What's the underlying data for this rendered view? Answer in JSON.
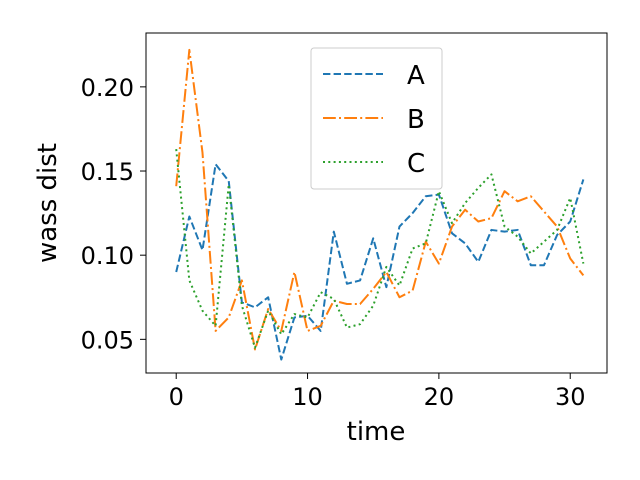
{
  "chart_data": {
    "type": "line",
    "title": "",
    "xlabel": "time",
    "ylabel": "wass dist",
    "xlim": [
      -2.3,
      32.8
    ],
    "ylim": [
      0.03,
      0.232
    ],
    "xticks": [
      0,
      10,
      20,
      30
    ],
    "yticks": [
      0.05,
      0.1,
      0.15,
      0.2
    ],
    "xtick_labels": [
      "0",
      "10",
      "20",
      "30"
    ],
    "ytick_labels": [
      "0.05",
      "0.10",
      "0.15",
      "0.20"
    ],
    "grid": false,
    "legend": "top-center",
    "x": [
      0,
      1,
      2,
      3,
      4,
      5,
      6,
      7,
      8,
      9,
      10,
      11,
      12,
      13,
      14,
      15,
      16,
      17,
      18,
      19,
      20,
      21,
      22,
      23,
      24,
      25,
      26,
      27,
      28,
      29,
      30,
      31
    ],
    "series": [
      {
        "name": "A",
        "color": "#1f77b4",
        "dash": "dashed",
        "values": [
          0.09,
          0.123,
          0.103,
          0.154,
          0.144,
          0.072,
          0.069,
          0.075,
          0.038,
          0.063,
          0.064,
          0.055,
          0.114,
          0.083,
          0.085,
          0.11,
          0.081,
          0.117,
          0.125,
          0.135,
          0.136,
          0.113,
          0.107,
          0.096,
          0.115,
          0.114,
          0.115,
          0.094,
          0.094,
          0.112,
          0.12,
          0.145
        ]
      },
      {
        "name": "B",
        "color": "#ff7f0e",
        "dash": "dashdot",
        "values": [
          0.141,
          0.222,
          0.161,
          0.055,
          0.063,
          0.085,
          0.044,
          0.068,
          0.055,
          0.09,
          0.055,
          0.058,
          0.073,
          0.071,
          0.071,
          0.08,
          0.09,
          0.075,
          0.079,
          0.108,
          0.095,
          0.117,
          0.127,
          0.12,
          0.122,
          0.138,
          0.132,
          0.135,
          0.126,
          0.117,
          0.098,
          0.088
        ]
      },
      {
        "name": "C",
        "color": "#2ca02c",
        "dash": "dotted",
        "values": [
          0.163,
          0.085,
          0.067,
          0.058,
          0.142,
          0.07,
          0.045,
          0.067,
          0.053,
          0.065,
          0.063,
          0.078,
          0.074,
          0.057,
          0.059,
          0.07,
          0.093,
          0.082,
          0.104,
          0.107,
          0.138,
          0.119,
          0.131,
          0.14,
          0.148,
          0.117,
          0.111,
          0.101,
          0.108,
          0.115,
          0.134,
          0.095
        ]
      }
    ]
  }
}
